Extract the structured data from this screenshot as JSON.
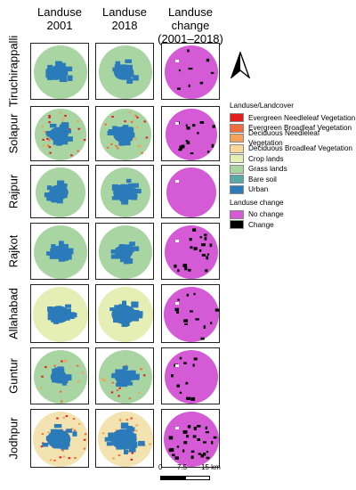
{
  "headers": {
    "col1": [
      "Landuse",
      "2001"
    ],
    "col2": [
      "Landuse",
      "2018"
    ],
    "col3": [
      "Landuse",
      "change",
      "(2001–2018)"
    ]
  },
  "cities": [
    {
      "name": "Tiruchirappalli",
      "base": "#a8d5a2",
      "urban": 0.22,
      "change": 0.05,
      "veg": 0.0
    },
    {
      "name": "Solapur",
      "base": "#a8d5a2",
      "urban": 0.24,
      "change": 0.1,
      "veg": 0.25
    },
    {
      "name": "Rajpur",
      "base": "#a8d5a2",
      "urban": 0.25,
      "change": 0.0,
      "veg": 0.0
    },
    {
      "name": "Rajkot",
      "base": "#a8d5a2",
      "urban": 0.2,
      "change": 0.12,
      "veg": 0.0
    },
    {
      "name": "Allahabad",
      "base": "#e5efb5",
      "urban": 0.26,
      "change": 0.08,
      "veg": 0.0
    },
    {
      "name": "Guntur",
      "base": "#a8d5a2",
      "urban": 0.2,
      "change": 0.07,
      "veg": 0.15
    },
    {
      "name": "Jodhpur",
      "base": "#f3e3b0",
      "urban": 0.28,
      "change": 0.18,
      "veg": 0.2
    }
  ],
  "legend": {
    "title": "Landuse/Landcover",
    "items": [
      {
        "label": "Evergreen Needleleaf Vegetation",
        "color": "#e41a1c"
      },
      {
        "label": "Evergreen Broadleaf Vegetation",
        "color": "#f26b3a"
      },
      {
        "label": "Deciduous Needleleaf Vegetation",
        "color": "#f6a15a"
      },
      {
        "label": "Deciduous Broadleaf Vegetation",
        "color": "#fbd79a"
      },
      {
        "label": "Crop lands",
        "color": "#e5efb5"
      },
      {
        "label": "Grass lands",
        "color": "#a8d5a2"
      },
      {
        "label": "Bare soil",
        "color": "#5aa9a5"
      },
      {
        "label": "Urban",
        "color": "#2b7bba"
      }
    ],
    "change_title": "Landuse change",
    "change_items": [
      {
        "label": "No change",
        "color": "#d45ad6"
      },
      {
        "label": "Change",
        "color": "#000000"
      }
    ]
  },
  "scale": {
    "labels": [
      "0",
      "7.5",
      "15 km"
    ]
  }
}
